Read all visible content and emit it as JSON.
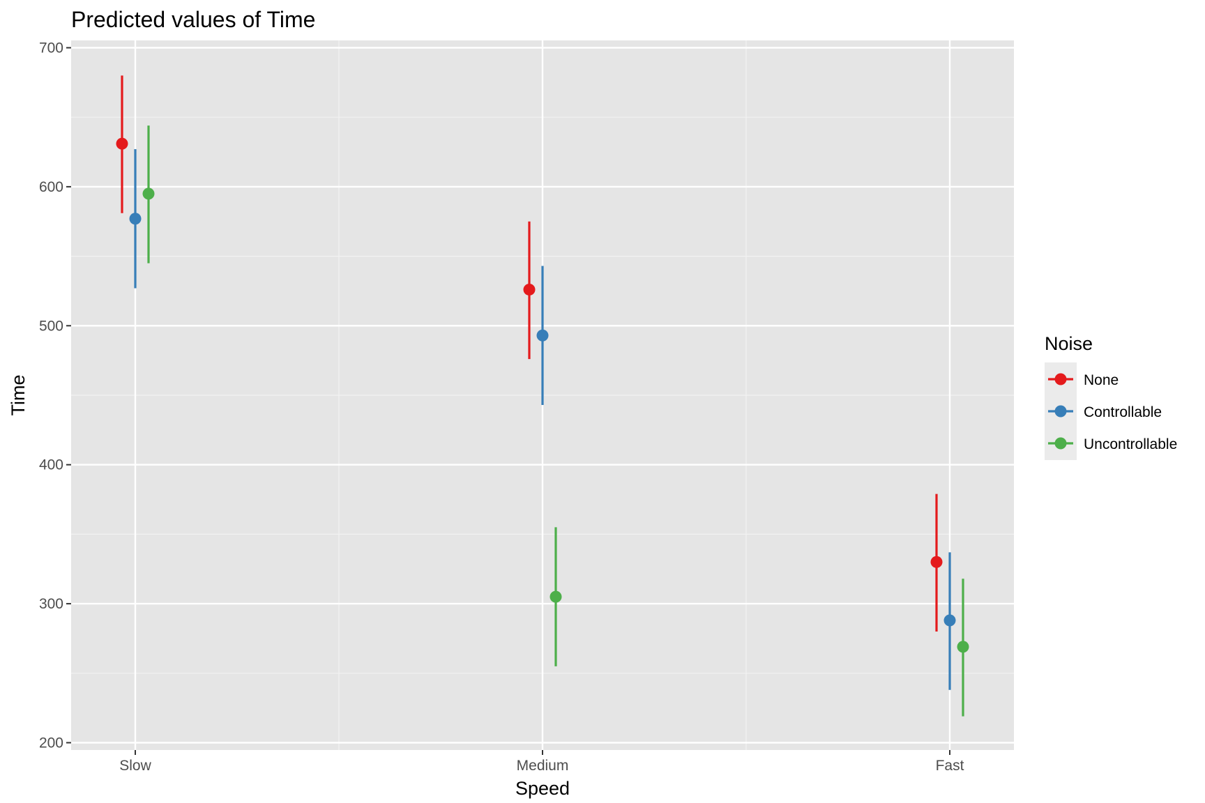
{
  "chart_data": {
    "type": "scatter",
    "title": "Predicted values of Time",
    "xlabel": "Speed",
    "ylabel": "Time",
    "categories": [
      "Slow",
      "Medium",
      "Fast"
    ],
    "ylim": [
      200,
      700
    ],
    "yticks": [
      200,
      300,
      400,
      500,
      600,
      700
    ],
    "grid": true,
    "legend": {
      "title": "Noise",
      "placement": "right"
    },
    "series": [
      {
        "name": "None",
        "color": "#E41A1C",
        "values": [
          631,
          526,
          330
        ],
        "lower": [
          581,
          476,
          280
        ],
        "upper": [
          680,
          575,
          379
        ]
      },
      {
        "name": "Controllable",
        "color": "#377EB8",
        "values": [
          577,
          493,
          288
        ],
        "lower": [
          527,
          443,
          238
        ],
        "upper": [
          627,
          543,
          337
        ]
      },
      {
        "name": "Uncontrollable",
        "color": "#4DAF4A",
        "values": [
          595,
          305,
          269
        ],
        "lower": [
          545,
          255,
          219
        ],
        "upper": [
          644,
          355,
          318
        ]
      }
    ]
  }
}
